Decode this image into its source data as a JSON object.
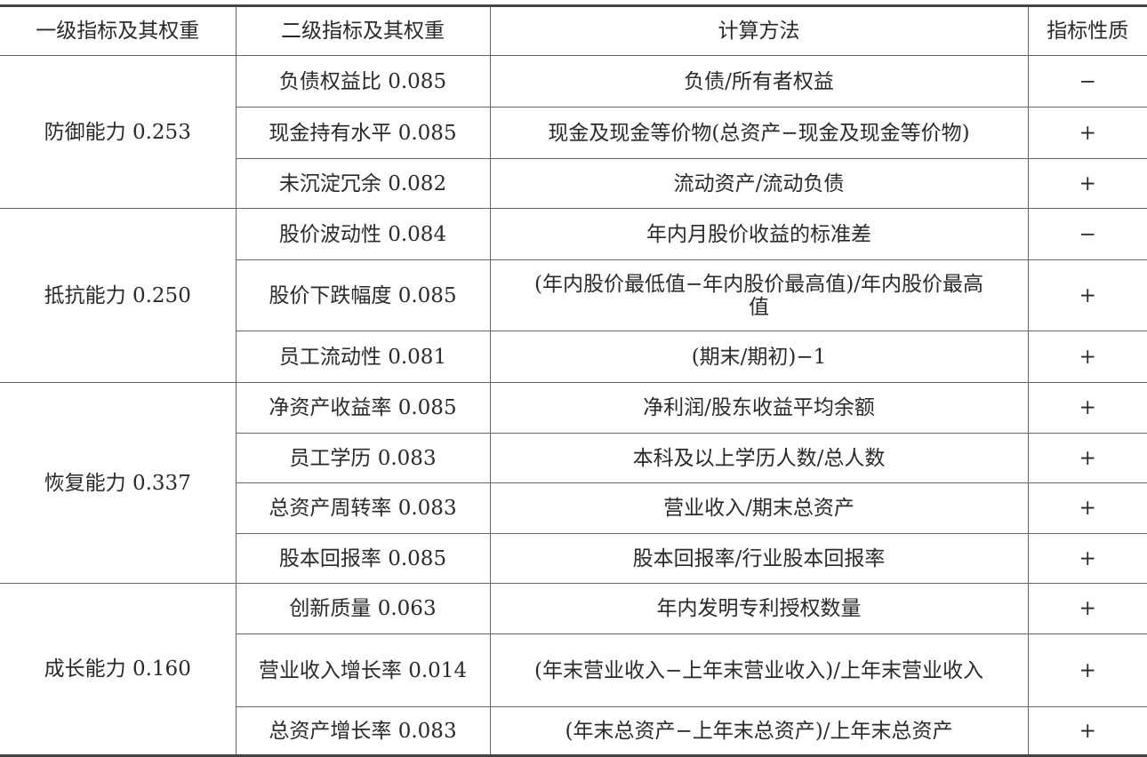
{
  "headers": [
    "一级指标及其权重",
    "二级指标及其权重",
    "计算方法",
    "指标性质"
  ],
  "groups": [
    {
      "primary": "防御能力 0.253",
      "rows": [
        {
          "secondary": "负债权益比 0.085",
          "method": "负债/所有者权益",
          "nature": "−"
        },
        {
          "secondary": "现金持有水平 0.085",
          "method": "现金及现金等价物(总资产−现金及现金等价物)",
          "nature": "+"
        },
        {
          "secondary": "未沉淀冗余 0.082",
          "method": "流动资产/流动负债",
          "nature": "+"
        }
      ]
    },
    {
      "primary": "抵抗能力 0.250",
      "rows": [
        {
          "secondary": "股价波动性 0.084",
          "method": "年内月股价收益的标准差",
          "nature": "−"
        },
        {
          "secondary": "股价下跌幅度 0.085",
          "method": "(年内股价最低值−年内股价最高值)/年内股价最高值",
          "nature": "+"
        },
        {
          "secondary": "员工流动性 0.081",
          "method": "(期末/期初)−1",
          "nature": "+"
        }
      ]
    },
    {
      "primary": "恢复能力 0.337",
      "rows": [
        {
          "secondary": "净资产收益率 0.085",
          "method": "净利润/股东收益平均余额",
          "nature": "+"
        },
        {
          "secondary": "员工学历 0.083",
          "method": "本科及以上学历人数/总人数",
          "nature": "+"
        },
        {
          "secondary": "总资产周转率 0.083",
          "method": "营业收入/期末总资产",
          "nature": "+"
        },
        {
          "secondary": "股本回报率 0.085",
          "method": "股本回报率/行业股本回报率",
          "nature": "+"
        }
      ]
    },
    {
      "primary": "成长能力 0.160",
      "rows": [
        {
          "secondary": "创新质量 0.063",
          "method": "年内发明专利授权数量",
          "nature": "+"
        },
        {
          "secondary": "营业收入增长率 0.014",
          "method": "(年末营业收入−上年末营业收入)/上年末营业收入",
          "nature": "+"
        },
        {
          "secondary": "总资产增长率 0.083",
          "method": "(年末总资产−上年末总资产)/上年末总资产",
          "nature": "+"
        }
      ]
    }
  ]
}
